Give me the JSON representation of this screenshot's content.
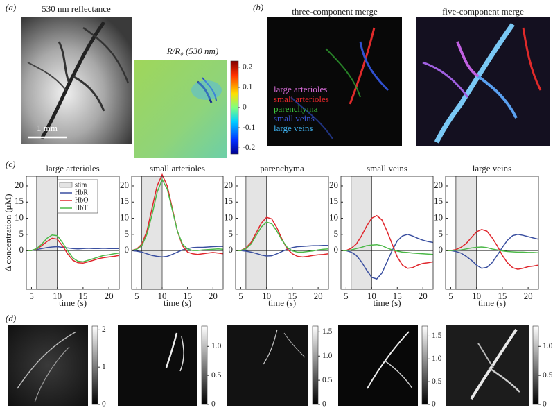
{
  "panel_labels": [
    "(a)",
    "(b)",
    "(c)",
    "(d)"
  ],
  "panel_a": {
    "title": "530 nm reflectance",
    "scale_bar": "1 mm",
    "ratio_label": "R/R₀ (530 nm)",
    "colorbar": {
      "lim": [
        -0.23,
        0.23
      ],
      "ticks": [
        0.2,
        0.1,
        0,
        -0.1,
        -0.2
      ]
    }
  },
  "panel_b": {
    "titles": [
      "three-component merge",
      "five-component merge"
    ],
    "legend": [
      {
        "name": "large arterioles",
        "color": "#d46ad4"
      },
      {
        "name": "small arterioles",
        "color": "#e8262a"
      },
      {
        "name": "parenchyma",
        "color": "#3cc23c"
      },
      {
        "name": "small veins",
        "color": "#3a56d6"
      },
      {
        "name": "large veins",
        "color": "#3fb2f0"
      }
    ]
  },
  "chart_data": [
    {
      "type": "line",
      "title": "large arterioles",
      "xlabel": "time (s)",
      "ylabel": "Δ concentration (μM)",
      "x": [
        4,
        5,
        6,
        7,
        8,
        9,
        10,
        11,
        12,
        13,
        14,
        15,
        16,
        17,
        18,
        19,
        20,
        21,
        22
      ],
      "xlim": [
        4,
        22
      ],
      "xticks": [
        5,
        10,
        15,
        20
      ],
      "ylim": [
        -12,
        23
      ],
      "yticks": [
        0,
        5,
        10,
        15,
        20
      ],
      "stim": [
        6,
        10
      ],
      "stim_label": "stim",
      "stim_color": "#e4e4e4",
      "legend": "upper center",
      "series": [
        {
          "name": "HbR",
          "color": "#3a4fa0",
          "values": [
            0,
            0,
            0.3,
            0.6,
            0.9,
            1.1,
            1.2,
            1.0,
            0.8,
            0.6,
            0.5,
            0.6,
            0.7,
            0.6,
            0.6,
            0.7,
            0.6,
            0.6,
            0.6
          ]
        },
        {
          "name": "HbO",
          "color": "#e0262c",
          "values": [
            0,
            0,
            0.5,
            1.5,
            2.8,
            3.8,
            3.5,
            1.5,
            -1,
            -3,
            -3.8,
            -3.9,
            -3.5,
            -3,
            -2.5,
            -2.2,
            -2,
            -1.8,
            -1.5
          ]
        },
        {
          "name": "HbT",
          "color": "#4cb848",
          "values": [
            0,
            0,
            0.6,
            2.0,
            3.8,
            4.8,
            4.6,
            2.5,
            0,
            -2.3,
            -3.3,
            -3.5,
            -3,
            -2.5,
            -2,
            -1.5,
            -1.3,
            -1,
            -0.8
          ]
        }
      ]
    },
    {
      "type": "line",
      "title": "small arterioles",
      "xlabel": "time (s)",
      "x": [
        4,
        5,
        6,
        7,
        8,
        9,
        10,
        11,
        12,
        13,
        14,
        15,
        16,
        17,
        18,
        19,
        20,
        21,
        22
      ],
      "xlim": [
        4,
        22
      ],
      "xticks": [
        5,
        10,
        15,
        20
      ],
      "ylim": [
        -12,
        23
      ],
      "yticks": [
        0,
        5,
        10,
        15,
        20
      ],
      "stim": [
        6,
        10
      ],
      "stim_color": "#e4e4e4",
      "series": [
        {
          "color": "#3a4fa0",
          "values": [
            0,
            -0.2,
            -0.5,
            -1,
            -1.5,
            -1.8,
            -2,
            -1.8,
            -1.2,
            -0.5,
            0.2,
            0.6,
            0.9,
            1.0,
            1.0,
            1.1,
            1.2,
            1.3,
            1.3
          ]
        },
        {
          "color": "#e0262c",
          "values": [
            0,
            0.5,
            2,
            6,
            13,
            20,
            23.5,
            20,
            13,
            6,
            1.5,
            -0.5,
            -1,
            -1.2,
            -1,
            -0.8,
            -0.6,
            -0.8,
            -1
          ]
        },
        {
          "color": "#4cb848",
          "values": [
            0,
            0.4,
            1.5,
            5,
            11,
            18,
            22,
            19,
            12.5,
            6,
            2,
            0.5,
            0,
            0,
            0.2,
            0.3,
            0.4,
            0.5,
            0.4
          ]
        }
      ]
    },
    {
      "type": "line",
      "title": "parenchyma",
      "xlabel": "time (s)",
      "x": [
        4,
        5,
        6,
        7,
        8,
        9,
        10,
        11,
        12,
        13,
        14,
        15,
        16,
        17,
        18,
        19,
        20,
        21,
        22
      ],
      "xlim": [
        4,
        22
      ],
      "xticks": [
        5,
        10,
        15,
        20
      ],
      "ylim": [
        -12,
        23
      ],
      "yticks": [
        0,
        5,
        10,
        15,
        20
      ],
      "stim": [
        6,
        10
      ],
      "stim_color": "#e4e4e4",
      "series": [
        {
          "color": "#3a4fa0",
          "values": [
            0,
            0,
            -0.2,
            -0.5,
            -0.9,
            -1.4,
            -1.7,
            -1.6,
            -1.0,
            -0.3,
            0.4,
            0.9,
            1.2,
            1.3,
            1.4,
            1.5,
            1.5,
            1.6,
            1.6
          ]
        },
        {
          "color": "#e0262c",
          "values": [
            0,
            0,
            0.8,
            2.5,
            5.5,
            8.5,
            10.3,
            9.8,
            7,
            3.5,
            0.5,
            -1,
            -1.8,
            -2,
            -1.8,
            -1.5,
            -1.3,
            -1.2,
            -1
          ]
        },
        {
          "color": "#4cb848",
          "values": [
            0,
            0,
            0.6,
            2,
            4.7,
            7.3,
            8.8,
            8.3,
            6,
            3.2,
            1,
            -0.1,
            -0.5,
            -0.5,
            -0.3,
            -0.1,
            0.2,
            0.4,
            0.5
          ]
        }
      ]
    },
    {
      "type": "line",
      "title": "small veins",
      "xlabel": "time (s)",
      "x": [
        4,
        5,
        6,
        7,
        8,
        9,
        10,
        11,
        12,
        13,
        14,
        15,
        16,
        17,
        18,
        19,
        20,
        21,
        22
      ],
      "xlim": [
        4,
        22
      ],
      "xticks": [
        5,
        10,
        15,
        20
      ],
      "ylim": [
        -12,
        23
      ],
      "yticks": [
        0,
        5,
        10,
        15,
        20
      ],
      "stim": [
        6,
        10
      ],
      "stim_color": "#e4e4e4",
      "series": [
        {
          "color": "#3a4fa0",
          "values": [
            0,
            0,
            -0.5,
            -1.5,
            -3.5,
            -6,
            -8.3,
            -8.8,
            -7,
            -3.5,
            0,
            3,
            4.5,
            5,
            4.5,
            3.8,
            3.2,
            2.8,
            2.5
          ]
        },
        {
          "color": "#e0262c",
          "values": [
            0,
            0,
            0.7,
            2,
            4.5,
            7.5,
            10,
            10.8,
            9.5,
            6,
            2,
            -2,
            -4.5,
            -5.5,
            -5.3,
            -4.5,
            -4,
            -3.8,
            -3.5
          ]
        },
        {
          "color": "#4cb848",
          "values": [
            0,
            0,
            0.2,
            0.6,
            1.0,
            1.5,
            1.7,
            1.8,
            1.5,
            0.8,
            0.2,
            -0.2,
            -0.5,
            -0.6,
            -0.8,
            -0.9,
            -1,
            -1.1,
            -1.2
          ]
        }
      ]
    },
    {
      "type": "line",
      "title": "large veins",
      "xlabel": "time (s)",
      "x": [
        4,
        5,
        6,
        7,
        8,
        9,
        10,
        11,
        12,
        13,
        14,
        15,
        16,
        17,
        18,
        19,
        20,
        21,
        22
      ],
      "xlim": [
        4,
        22
      ],
      "xticks": [
        5,
        10,
        15,
        20
      ],
      "ylim": [
        -12,
        23
      ],
      "yticks": [
        0,
        5,
        10,
        15,
        20
      ],
      "stim": [
        6,
        10
      ],
      "stim_color": "#e4e4e4",
      "series": [
        {
          "color": "#3a4fa0",
          "values": [
            0,
            0,
            -0.3,
            -0.8,
            -1.8,
            -3,
            -4.5,
            -5.5,
            -5.2,
            -3.8,
            -1.5,
            1,
            3.2,
            4.6,
            5,
            4.7,
            4.3,
            3.9,
            3.5
          ]
        },
        {
          "color": "#e0262c",
          "values": [
            0,
            0,
            0.3,
            1,
            2.2,
            4,
            5.8,
            6.5,
            6,
            4,
            1.5,
            -1.5,
            -3.8,
            -5.3,
            -5.8,
            -5.5,
            -5,
            -4.8,
            -4.5
          ]
        },
        {
          "color": "#4cb848",
          "values": [
            0,
            0,
            0.1,
            0.2,
            0.5,
            0.8,
            1.0,
            1.1,
            0.9,
            0.5,
            0.2,
            -0.1,
            -0.3,
            -0.4,
            -0.5,
            -0.5,
            -0.6,
            -0.6,
            -0.7
          ]
        }
      ]
    }
  ],
  "panel_d": {
    "colorbars": [
      {
        "lim": [
          0,
          2.1
        ],
        "ticks": [
          0,
          1,
          2
        ]
      },
      {
        "lim": [
          0,
          1.35
        ],
        "ticks": [
          0,
          0.5,
          {
            "value": 1,
            "label": "1.0"
          }
        ]
      },
      {
        "lim": [
          0,
          1.62
        ],
        "ticks": [
          0,
          0.5,
          {
            "value": 1,
            "label": "1.0"
          },
          1.5
        ]
      },
      {
        "lim": [
          0,
          1.72
        ],
        "ticks": [
          0,
          0.5,
          {
            "value": 1,
            "label": "1.0"
          },
          1.5
        ]
      },
      {
        "lim": [
          0,
          1.35
        ],
        "ticks": [
          0,
          0.5,
          {
            "value": 1,
            "label": "1.0"
          }
        ]
      }
    ]
  }
}
